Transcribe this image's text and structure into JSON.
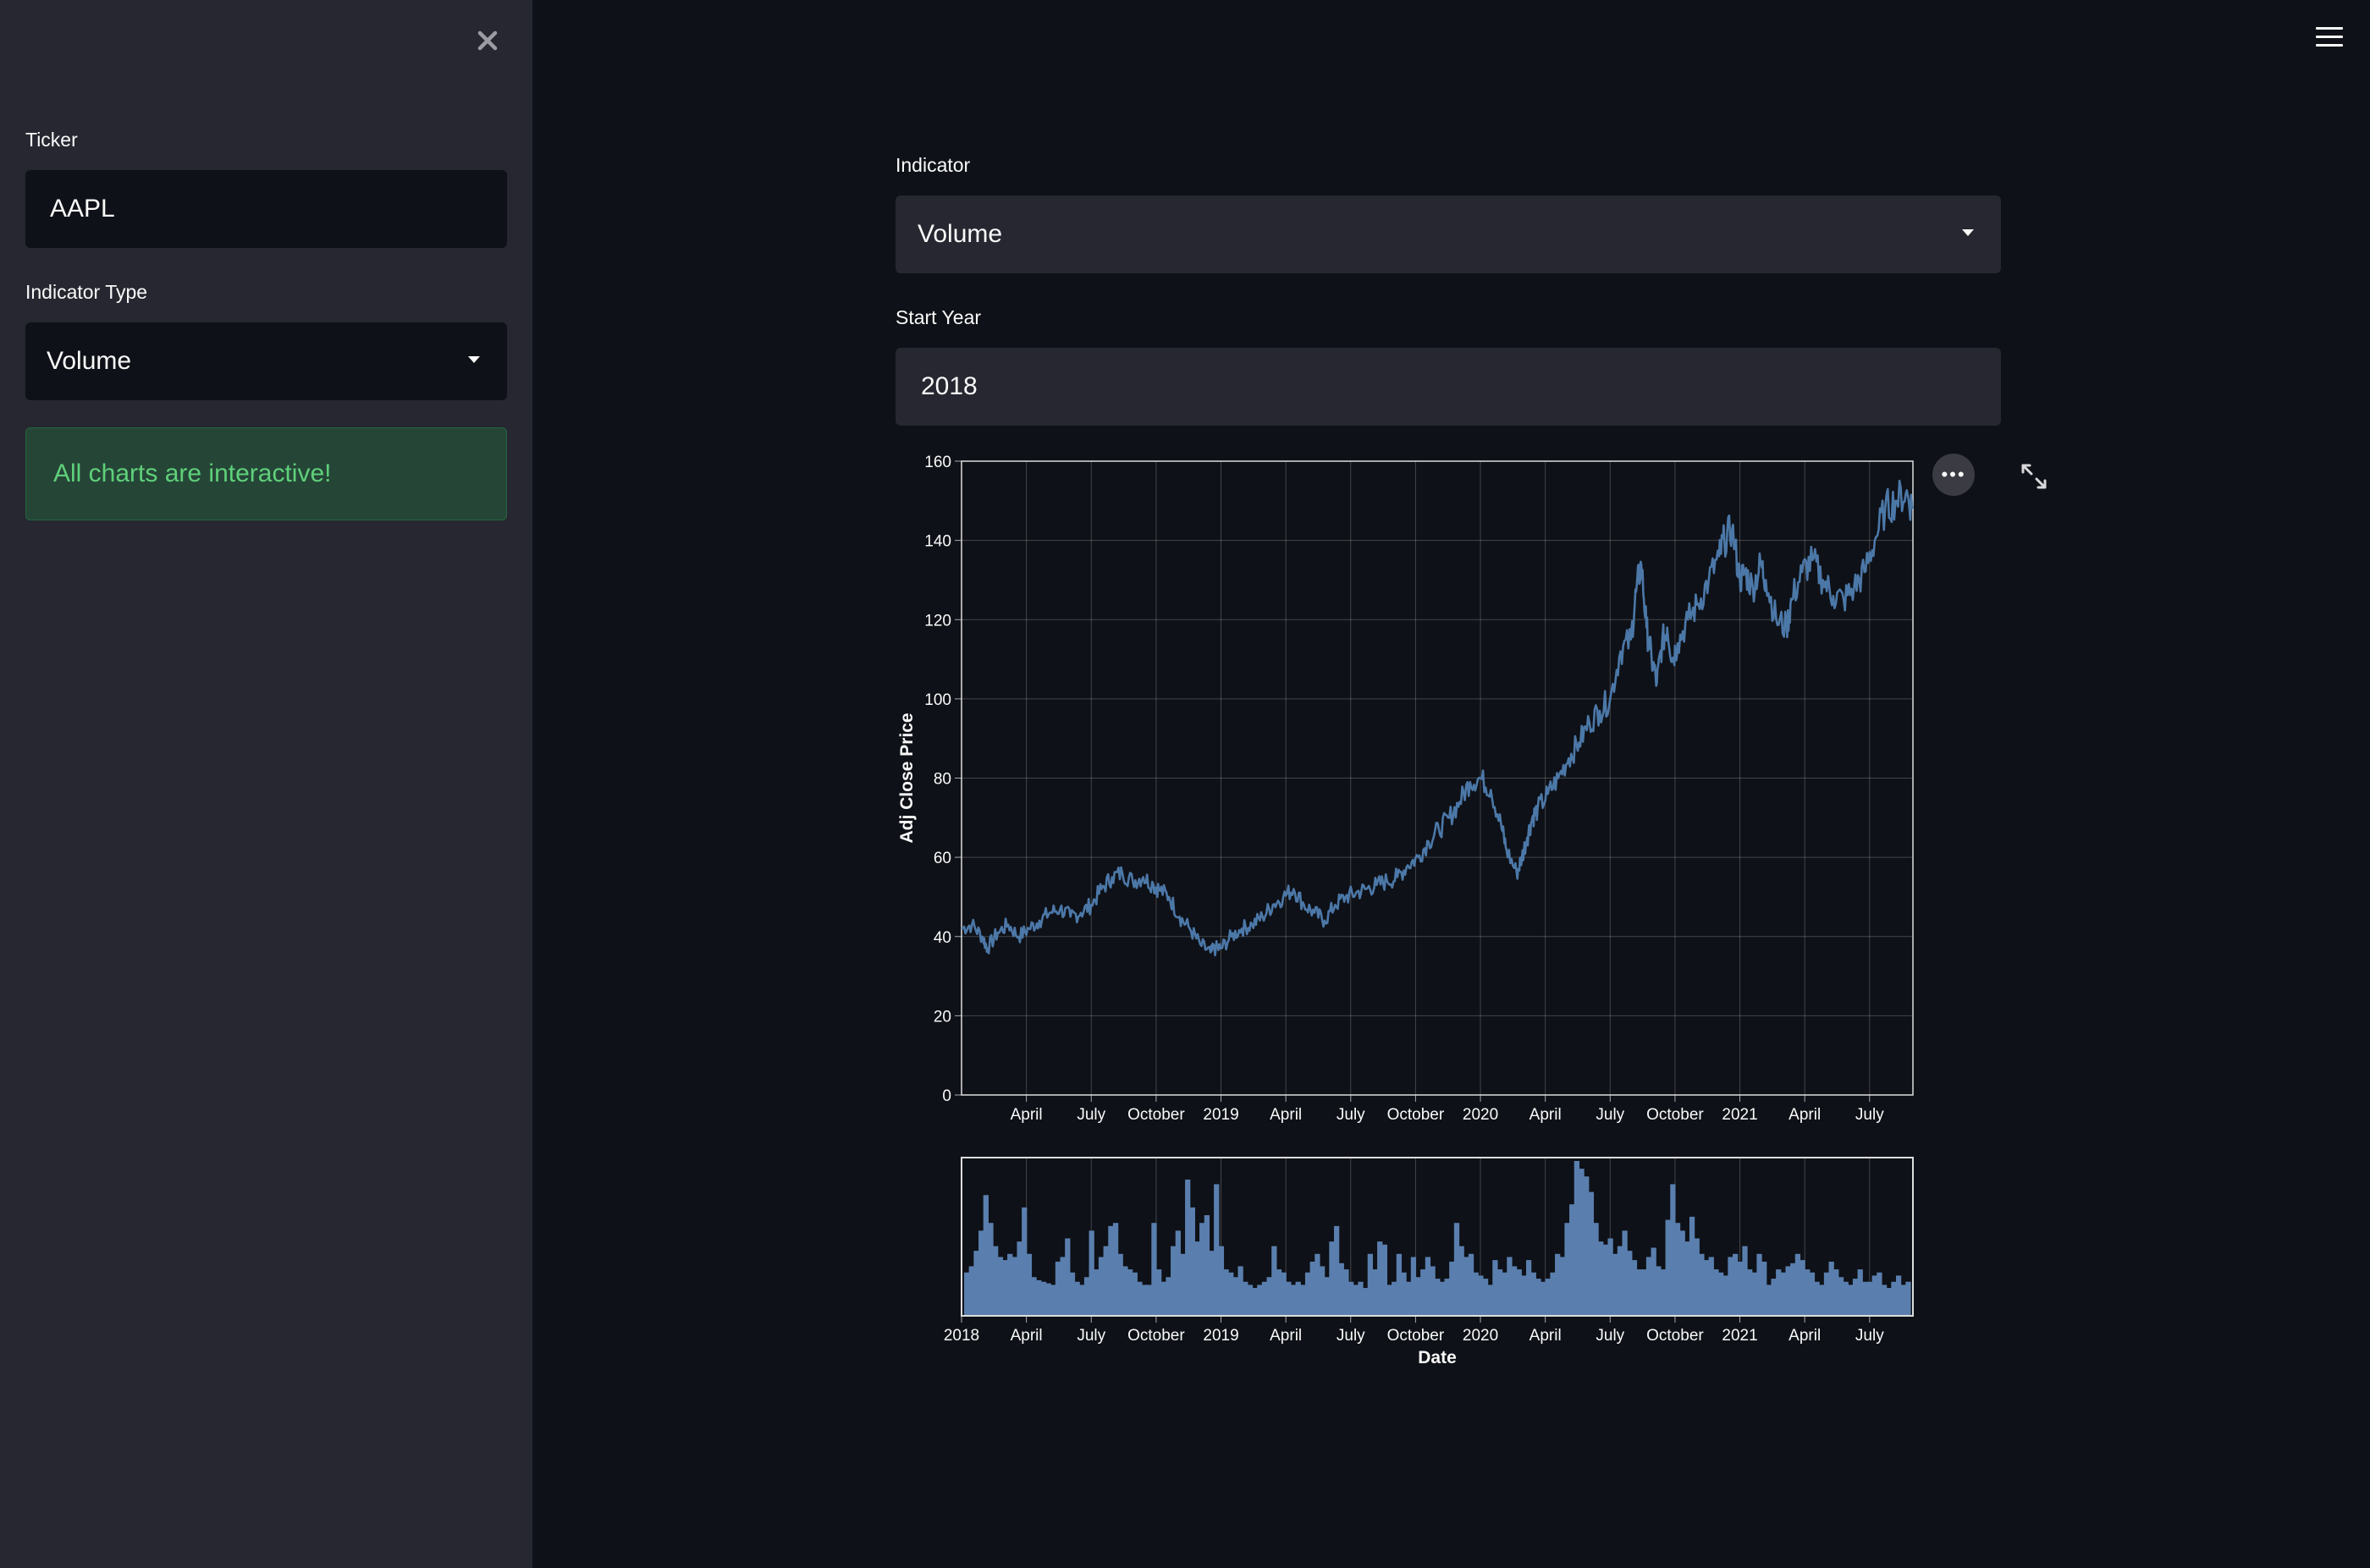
{
  "sidebar": {
    "close_icon": "close-icon",
    "ticker": {
      "label": "Ticker",
      "value": "AAPL"
    },
    "indicator_type": {
      "label": "Indicator Type",
      "value": "Volume"
    },
    "info_alert": "All charts are interactive!"
  },
  "main": {
    "menu_icon": "hamburger-menu-icon",
    "indicator": {
      "label": "Indicator",
      "value": "Volume"
    },
    "start_year": {
      "label": "Start Year",
      "value": "2018"
    },
    "chart_actions": {
      "more_icon": "more-actions-icon",
      "expand_icon": "fullscreen-icon"
    }
  },
  "colors": {
    "accent_line": "#4c78a8",
    "bar_fill": "#5a7fae",
    "alert_text": "#5fd07a",
    "background": "#0e1117",
    "sidebar": "#262730"
  },
  "chart_data": [
    {
      "type": "line",
      "title": "",
      "xlabel": "",
      "ylabel": "Adj Close Price",
      "ylim": [
        0,
        160
      ],
      "yticks": [
        0,
        20,
        40,
        60,
        80,
        100,
        120,
        140,
        160
      ],
      "xlim": [
        2018.0,
        2021.667
      ],
      "xticks": [
        {
          "t": 2018.25,
          "label": "April"
        },
        {
          "t": 2018.5,
          "label": "July"
        },
        {
          "t": 2018.75,
          "label": "October"
        },
        {
          "t": 2019.0,
          "label": "2019"
        },
        {
          "t": 2019.25,
          "label": "April"
        },
        {
          "t": 2019.5,
          "label": "July"
        },
        {
          "t": 2019.75,
          "label": "October"
        },
        {
          "t": 2020.0,
          "label": "2020"
        },
        {
          "t": 2020.25,
          "label": "April"
        },
        {
          "t": 2020.5,
          "label": "July"
        },
        {
          "t": 2020.75,
          "label": "October"
        },
        {
          "t": 2021.0,
          "label": "2021"
        },
        {
          "t": 2021.25,
          "label": "April"
        },
        {
          "t": 2021.5,
          "label": "July"
        }
      ],
      "grid": true,
      "series": [
        {
          "name": "Adj Close",
          "x": [
            2018.0,
            2018.04,
            2018.08,
            2018.1,
            2018.14,
            2018.18,
            2018.22,
            2018.26,
            2018.3,
            2018.34,
            2018.38,
            2018.42,
            2018.46,
            2018.5,
            2018.54,
            2018.58,
            2018.62,
            2018.66,
            2018.7,
            2018.74,
            2018.76,
            2018.8,
            2018.84,
            2018.88,
            2018.92,
            2018.96,
            2018.98,
            2019.0,
            2019.04,
            2019.08,
            2019.12,
            2019.16,
            2019.2,
            2019.24,
            2019.28,
            2019.32,
            2019.36,
            2019.4,
            2019.44,
            2019.48,
            2019.52,
            2019.56,
            2019.6,
            2019.64,
            2019.68,
            2019.72,
            2019.76,
            2019.8,
            2019.84,
            2019.88,
            2019.92,
            2019.96,
            2020.0,
            2020.04,
            2020.08,
            2020.1,
            2020.14,
            2020.16,
            2020.18,
            2020.2,
            2020.22,
            2020.26,
            2020.3,
            2020.34,
            2020.38,
            2020.42,
            2020.46,
            2020.5,
            2020.54,
            2020.58,
            2020.6,
            2020.62,
            2020.64,
            2020.66,
            2020.68,
            2020.7,
            2020.72,
            2020.74,
            2020.76,
            2020.8,
            2020.84,
            2020.88,
            2020.92,
            2020.94,
            2020.97,
            2021.0,
            2021.02,
            2021.05,
            2021.08,
            2021.1,
            2021.14,
            2021.18,
            2021.2,
            2021.24,
            2021.28,
            2021.32,
            2021.36,
            2021.4,
            2021.44,
            2021.48,
            2021.52,
            2021.56,
            2021.6,
            2021.64,
            2021.667
          ],
          "values": [
            42,
            43,
            40,
            37,
            41,
            43,
            40,
            42,
            44,
            46,
            47,
            45,
            46,
            48,
            52,
            55,
            56,
            54,
            55,
            53,
            52,
            50,
            45,
            42,
            38,
            36,
            37,
            37,
            40,
            42,
            43,
            45,
            48,
            50,
            52,
            48,
            46,
            44,
            48,
            50,
            51,
            52,
            53,
            54,
            55,
            58,
            60,
            64,
            67,
            70,
            74,
            79,
            80,
            77,
            68,
            62,
            56,
            60,
            65,
            70,
            72,
            76,
            80,
            85,
            89,
            94,
            97,
            100,
            112,
            115,
            127,
            134,
            118,
            110,
            104,
            114,
            118,
            110,
            114,
            120,
            124,
            130,
            136,
            140,
            143,
            130,
            132,
            128,
            134,
            130,
            120,
            118,
            125,
            132,
            135,
            130,
            126,
            125,
            128,
            132,
            140,
            148,
            150,
            152,
            148
          ]
        }
      ]
    },
    {
      "type": "bar",
      "title": "",
      "xlabel": "Date",
      "ylabel": "",
      "xlim": [
        2018.0,
        2021.667
      ],
      "xticks": [
        {
          "t": 2018.0,
          "label": "2018"
        },
        {
          "t": 2018.25,
          "label": "April"
        },
        {
          "t": 2018.5,
          "label": "July"
        },
        {
          "t": 2018.75,
          "label": "October"
        },
        {
          "t": 2019.0,
          "label": "2019"
        },
        {
          "t": 2019.25,
          "label": "April"
        },
        {
          "t": 2019.5,
          "label": "July"
        },
        {
          "t": 2019.75,
          "label": "October"
        },
        {
          "t": 2020.0,
          "label": "2020"
        },
        {
          "t": 2020.25,
          "label": "April"
        },
        {
          "t": 2020.5,
          "label": "July"
        },
        {
          "t": 2020.75,
          "label": "October"
        },
        {
          "t": 2021.0,
          "label": "2021"
        },
        {
          "t": 2021.25,
          "label": "April"
        },
        {
          "t": 2021.5,
          "label": "July"
        }
      ],
      "ylim": [
        0,
        100
      ],
      "series": [
        {
          "name": "Volume",
          "values": [
            28,
            32,
            42,
            55,
            78,
            60,
            45,
            38,
            36,
            40,
            38,
            48,
            70,
            40,
            25,
            23,
            22,
            21,
            20,
            35,
            38,
            50,
            28,
            22,
            20,
            25,
            55,
            30,
            38,
            45,
            58,
            60,
            40,
            32,
            30,
            28,
            22,
            20,
            20,
            60,
            30,
            22,
            25,
            45,
            55,
            40,
            88,
            70,
            48,
            60,
            65,
            42,
            85,
            45,
            30,
            28,
            25,
            32,
            22,
            20,
            18,
            20,
            22,
            25,
            45,
            30,
            28,
            22,
            20,
            22,
            20,
            28,
            35,
            40,
            32,
            25,
            48,
            58,
            34,
            30,
            22,
            20,
            22,
            18,
            40,
            30,
            48,
            46,
            20,
            22,
            40,
            28,
            22,
            38,
            25,
            30,
            38,
            32,
            24,
            22,
            24,
            35,
            60,
            45,
            38,
            40,
            28,
            26,
            24,
            20,
            36,
            30,
            28,
            38,
            32,
            30,
            26,
            36,
            28,
            24,
            22,
            24,
            28,
            40,
            38,
            60,
            72,
            100,
            95,
            90,
            80,
            60,
            48,
            46,
            50,
            40,
            45,
            55,
            42,
            36,
            30,
            30,
            38,
            44,
            32,
            30,
            62,
            85,
            60,
            55,
            48,
            64,
            50,
            40,
            36,
            38,
            30,
            28,
            26,
            38,
            40,
            35,
            45,
            30,
            28,
            40,
            35,
            20,
            24,
            30,
            28,
            32,
            34,
            40,
            36,
            30,
            28,
            22,
            20,
            28,
            35,
            30,
            25,
            22,
            20,
            24,
            30,
            22,
            22,
            26,
            28,
            20,
            18,
            22,
            26,
            20,
            22
          ]
        }
      ]
    }
  ]
}
